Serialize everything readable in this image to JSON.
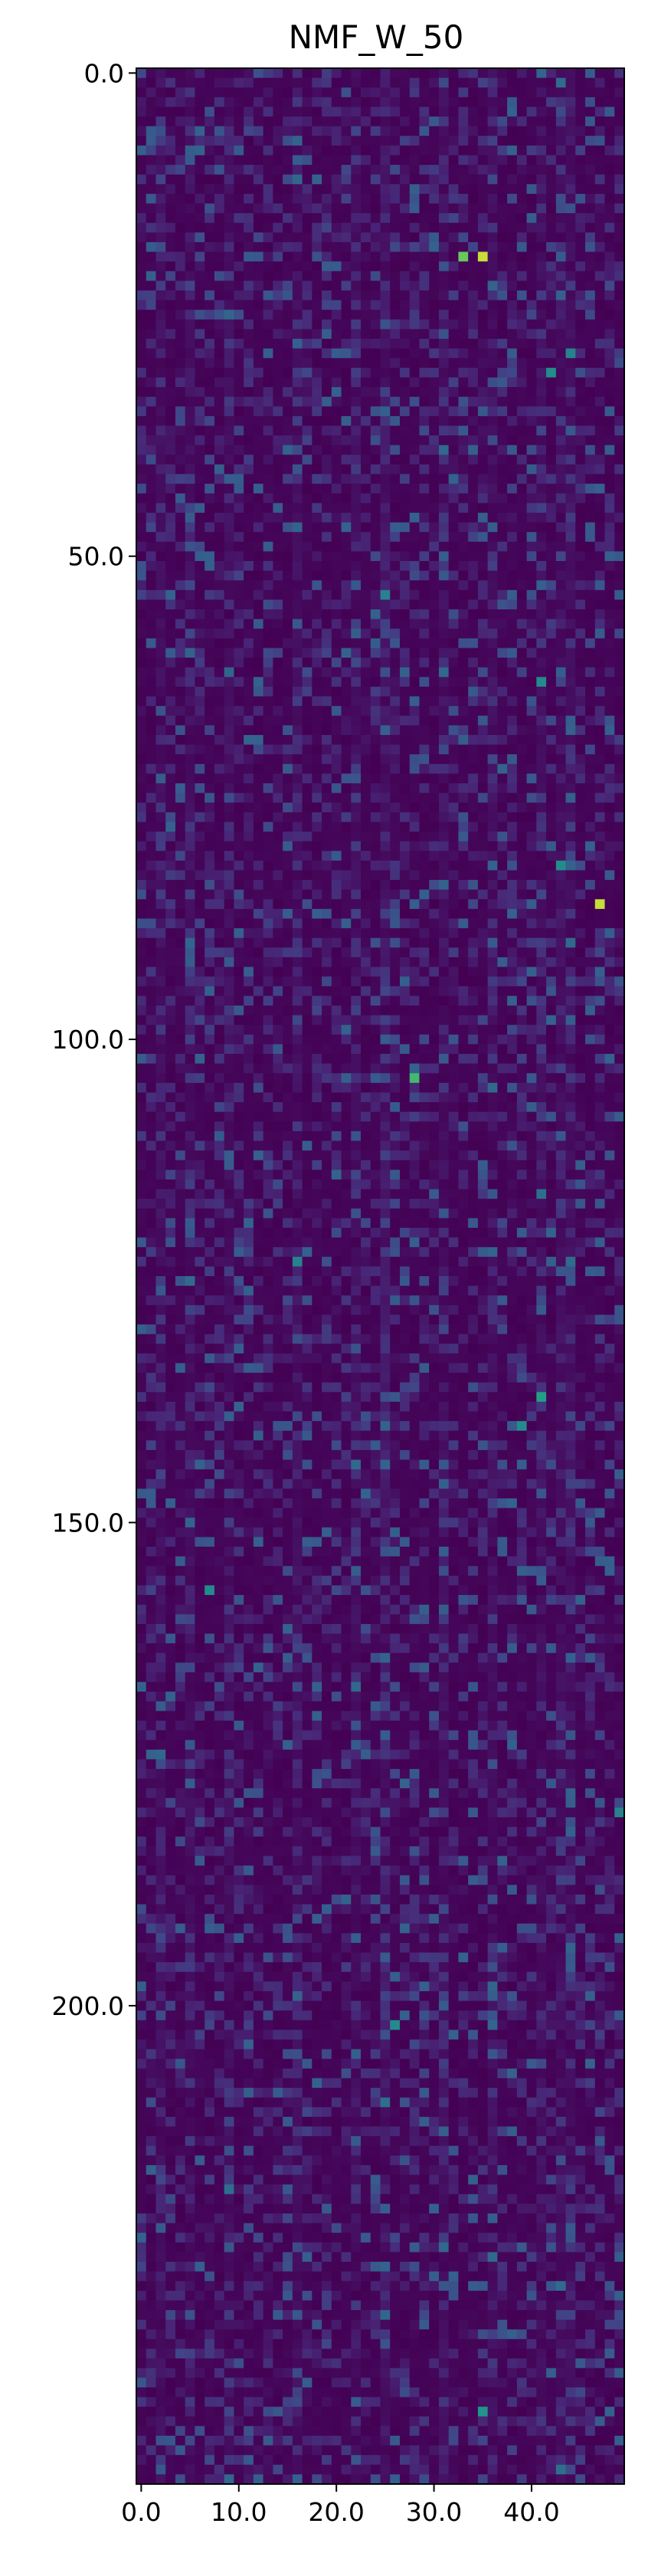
{
  "chart_data": {
    "type": "heatmap",
    "title": "NMF_W_50",
    "n_rows": 250,
    "n_cols": 50,
    "colormap": "viridis",
    "value_range": [
      0,
      1
    ],
    "x_ticks": [
      {
        "value": 0,
        "label": "0.0"
      },
      {
        "value": 10,
        "label": "10.0"
      },
      {
        "value": 20,
        "label": "20.0"
      },
      {
        "value": 30,
        "label": "30.0"
      },
      {
        "value": 40,
        "label": "40.0"
      }
    ],
    "y_ticks": [
      {
        "value": 0,
        "label": "0.0"
      },
      {
        "value": 50,
        "label": "50.0"
      },
      {
        "value": 100,
        "label": "100.0"
      },
      {
        "value": 150,
        "label": "150.0"
      },
      {
        "value": 200,
        "label": "200.0"
      }
    ],
    "highlight_cells": [
      {
        "row": 19,
        "col": 33,
        "value": 0.85
      },
      {
        "row": 19,
        "col": 35,
        "value": 0.95
      },
      {
        "row": 31,
        "col": 42,
        "value": 0.6
      },
      {
        "row": 29,
        "col": 44,
        "value": 0.55
      },
      {
        "row": 54,
        "col": 25,
        "value": 0.55
      },
      {
        "row": 63,
        "col": 41,
        "value": 0.6
      },
      {
        "row": 82,
        "col": 43,
        "value": 0.6
      },
      {
        "row": 86,
        "col": 47,
        "value": 0.95
      },
      {
        "row": 104,
        "col": 28,
        "value": 0.8
      },
      {
        "row": 123,
        "col": 16,
        "value": 0.55
      },
      {
        "row": 137,
        "col": 41,
        "value": 0.7
      },
      {
        "row": 140,
        "col": 39,
        "value": 0.6
      },
      {
        "row": 157,
        "col": 7,
        "value": 0.6
      },
      {
        "row": 180,
        "col": 49,
        "value": 0.55
      },
      {
        "row": 202,
        "col": 26,
        "value": 0.6
      },
      {
        "row": 242,
        "col": 35,
        "value": 0.65
      }
    ]
  }
}
